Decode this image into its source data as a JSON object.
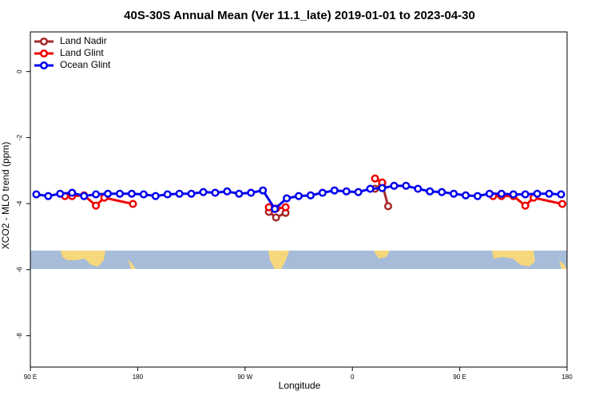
{
  "chart_data": {
    "type": "line",
    "title": "40S-30S Annual Mean (Ver 11.1_late)   2019-01-01 to 2023-04-30",
    "x_label": "Longitude",
    "y_label": "XCO2 - MLO trend (ppm)",
    "xlim": [
      90,
      540
    ],
    "ylim": [
      -8.95,
      1.2
    ],
    "xticks": [
      {
        "value": 90,
        "label": "90 E"
      },
      {
        "value": 180,
        "label": "180"
      },
      {
        "value": 270,
        "label": "90 W"
      },
      {
        "value": 360,
        "label": "0"
      },
      {
        "value": 450,
        "label": "90 E"
      },
      {
        "value": 540,
        "label": "180"
      }
    ],
    "yticks": [
      0,
      -2,
      -4,
      -6,
      -8
    ],
    "legend": "top-left",
    "series": [
      {
        "name": "Land Nadir",
        "color": "#a52a2a",
        "x": [
          290,
          296,
          304,
          null,
          379,
          385,
          390
        ],
        "values": [
          -4.25,
          -4.42,
          -4.28,
          null,
          -3.55,
          -3.4,
          -4.08
        ]
      },
      {
        "name": "Land Glint",
        "color": "#ee0000",
        "x": [
          119,
          125,
          135,
          145,
          152,
          176,
          null,
          290,
          296,
          304,
          null,
          379,
          385,
          null,
          478,
          485,
          495,
          505,
          512,
          536
        ],
        "values": [
          -3.77,
          -3.77,
          -3.75,
          -4.06,
          -3.82,
          -4.01,
          null,
          -4.11,
          -4.15,
          -4.11,
          null,
          -3.24,
          -3.36,
          null,
          -3.77,
          -3.77,
          -3.77,
          -4.06,
          -3.82,
          -4.01
        ]
      },
      {
        "name": "Ocean Glint",
        "color": "#0000ee",
        "x": [
          95,
          105,
          115,
          125,
          135,
          145,
          155,
          165,
          175,
          185,
          195,
          205,
          215,
          225,
          235,
          245,
          255,
          265,
          275,
          285,
          295,
          305,
          315,
          325,
          335,
          345,
          355,
          365,
          375,
          385,
          395,
          405,
          415,
          425,
          435,
          445,
          455,
          465,
          475,
          485,
          495,
          505,
          515,
          525,
          535
        ],
        "values": [
          -3.72,
          -3.77,
          -3.7,
          -3.67,
          -3.77,
          -3.72,
          -3.7,
          -3.7,
          -3.7,
          -3.72,
          -3.77,
          -3.72,
          -3.7,
          -3.7,
          -3.65,
          -3.67,
          -3.63,
          -3.7,
          -3.67,
          -3.6,
          -4.16,
          -3.84,
          -3.77,
          -3.75,
          -3.67,
          -3.6,
          -3.63,
          -3.65,
          -3.55,
          -3.53,
          -3.46,
          -3.46,
          -3.55,
          -3.63,
          -3.65,
          -3.7,
          -3.75,
          -3.77,
          -3.7,
          -3.7,
          -3.72,
          -3.72,
          -3.7,
          -3.7,
          -3.72
        ]
      }
    ]
  }
}
